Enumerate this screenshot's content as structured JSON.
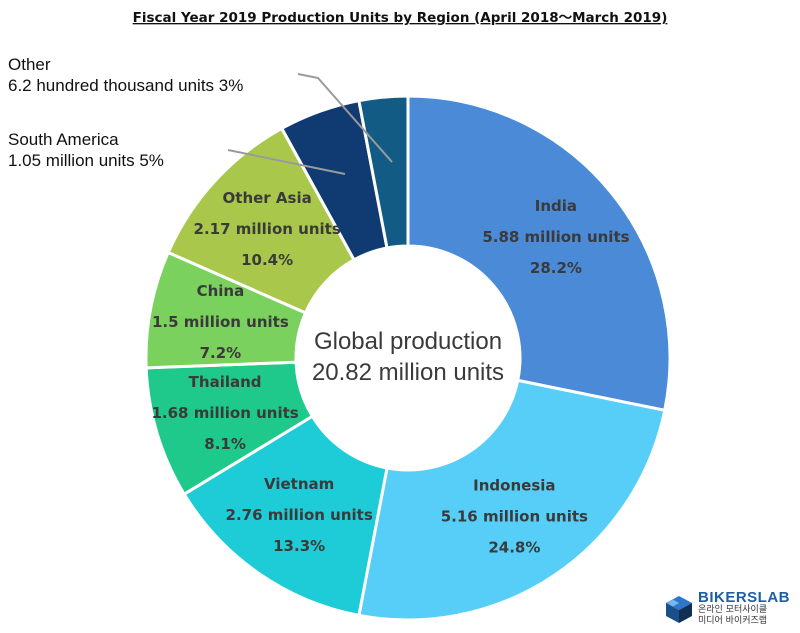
{
  "chart_data": {
    "type": "pie",
    "title": "Fiscal Year 2019 Production Units by Region (April 2018～March 2019)",
    "center_text": [
      "Global production",
      "20.82 million units"
    ],
    "slices": [
      {
        "name": "India",
        "value": 28.2,
        "label_lines": [
          "India",
          "5.88 million units",
          "28.2%"
        ],
        "color": "#4a8ad7"
      },
      {
        "name": "Indonesia",
        "value": 24.8,
        "label_lines": [
          "Indonesia",
          "5.16 million units",
          "24.8%"
        ],
        "color": "#56cef7"
      },
      {
        "name": "Vietnam",
        "value": 13.3,
        "label_lines": [
          "Vietnam",
          "2.76 million units",
          "13.3%"
        ],
        "color": "#1dccd6"
      },
      {
        "name": "Thailand",
        "value": 8.1,
        "label_lines": [
          "Thailand",
          "1.68 million units",
          "8.1%"
        ],
        "color": "#1ec98b"
      },
      {
        "name": "China",
        "value": 7.2,
        "label_lines": [
          "China",
          "1.5 million units",
          "7.2%"
        ],
        "color": "#7ad15d"
      },
      {
        "name": "Other Asia",
        "value": 10.4,
        "label_lines": [
          "Other Asia",
          "2.17 million units",
          "10.4%"
        ],
        "color": "#a9c84b"
      },
      {
        "name": "South America",
        "value": 5.0,
        "label_lines": [
          "South America",
          "1.05 million units 5%"
        ],
        "color": "#103b72",
        "outside": true
      },
      {
        "name": "Other",
        "value": 3.0,
        "label_lines": [
          "Other",
          "6.2 hundred thousand units 3%"
        ],
        "color": "#125b85",
        "outside": true
      }
    ]
  },
  "watermark": {
    "brand": "BIKERSLAB",
    "sub_line1": "온라인 모터사이클",
    "sub_line2": "미디어 바이커즈랩"
  }
}
